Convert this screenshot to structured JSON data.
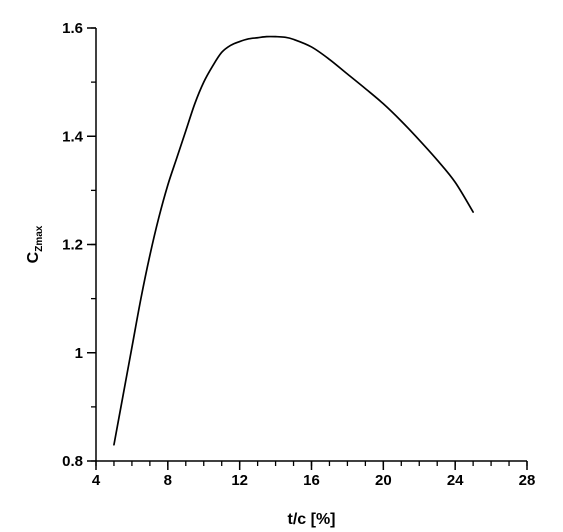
{
  "chart_data": {
    "type": "line",
    "title": "",
    "xlabel": "t/c [%]",
    "ylabel": "C",
    "ylabel_subscript": "Zmax",
    "xlim": [
      4,
      28
    ],
    "ylim": [
      0.8,
      1.6
    ],
    "x_ticks": [
      4,
      8,
      12,
      16,
      20,
      24,
      28
    ],
    "x_tick_labels": [
      "4",
      "8",
      "12",
      "16",
      "20",
      "24",
      "28"
    ],
    "x_minor_step": 1,
    "y_ticks": [
      0.8,
      1.0,
      1.2,
      1.4,
      1.6
    ],
    "y_tick_labels": [
      "0.8",
      "1",
      "1.2",
      "1.4",
      "1.6"
    ],
    "y_minor_step": 0.1,
    "grid": false,
    "legend": "none",
    "line_color": "#000000",
    "series": [
      {
        "x": [
          5.0,
          5.5,
          6.0,
          6.5,
          7.0,
          7.5,
          8.0,
          8.5,
          9.0,
          9.5,
          10.0,
          10.5,
          11.0,
          11.5,
          12.0,
          12.5,
          13.0,
          13.5,
          14.0,
          14.5,
          15.0,
          16.0,
          17.0,
          18.0,
          19.0,
          20.0,
          21.0,
          22.0,
          23.0,
          24.0,
          25.0
        ],
        "y": [
          0.83,
          0.92,
          1.01,
          1.1,
          1.18,
          1.25,
          1.31,
          1.36,
          1.41,
          1.46,
          1.5,
          1.53,
          1.555,
          1.568,
          1.575,
          1.58,
          1.582,
          1.584,
          1.584,
          1.583,
          1.579,
          1.565,
          1.542,
          1.515,
          1.488,
          1.46,
          1.428,
          1.393,
          1.356,
          1.315,
          1.26
        ]
      }
    ]
  }
}
